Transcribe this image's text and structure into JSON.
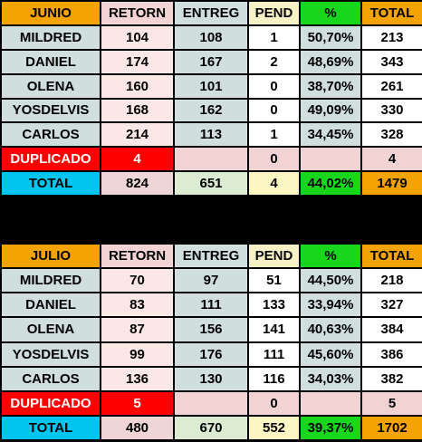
{
  "tables": [
    {
      "headers": [
        "JUNIO",
        "RETORN",
        "ENTREG",
        "PEND",
        "%",
        "TOTAL"
      ],
      "rows": [
        [
          "MILDRED",
          "104",
          "108",
          "1",
          "50,70%",
          "213"
        ],
        [
          "DANIEL",
          "174",
          "167",
          "2",
          "48,69%",
          "343"
        ],
        [
          "OLENA",
          "160",
          "101",
          "0",
          "38,70%",
          "261"
        ],
        [
          "YOSDELVIS",
          "168",
          "162",
          "0",
          "49,09%",
          "330"
        ],
        [
          "CARLOS",
          "214",
          "113",
          "1",
          "34,45%",
          "328"
        ]
      ],
      "duplicado": [
        "DUPLICADO",
        "4",
        "",
        "0",
        "",
        "4"
      ],
      "total": [
        "TOTAL",
        "824",
        "651",
        "4",
        "44,02%",
        "1479"
      ]
    },
    {
      "headers": [
        "JULIO",
        "RETORN",
        "ENTREG",
        "PEND",
        "%",
        "TOTAL"
      ],
      "rows": [
        [
          "MILDRED",
          "70",
          "97",
          "51",
          "44,50%",
          "218"
        ],
        [
          "DANIEL",
          "83",
          "111",
          "133",
          "33,94%",
          "327"
        ],
        [
          "OLENA",
          "87",
          "156",
          "141",
          "40,63%",
          "384"
        ],
        [
          "YOSDELVIS",
          "99",
          "176",
          "111",
          "45,60%",
          "386"
        ],
        [
          "CARLOS",
          "136",
          "130",
          "116",
          "34,03%",
          "382"
        ]
      ],
      "duplicado": [
        "DUPLICADO",
        "5",
        "",
        "0",
        "",
        "5"
      ],
      "total": [
        "TOTAL",
        "480",
        "670",
        "552",
        "39,37%",
        "1702"
      ]
    }
  ]
}
